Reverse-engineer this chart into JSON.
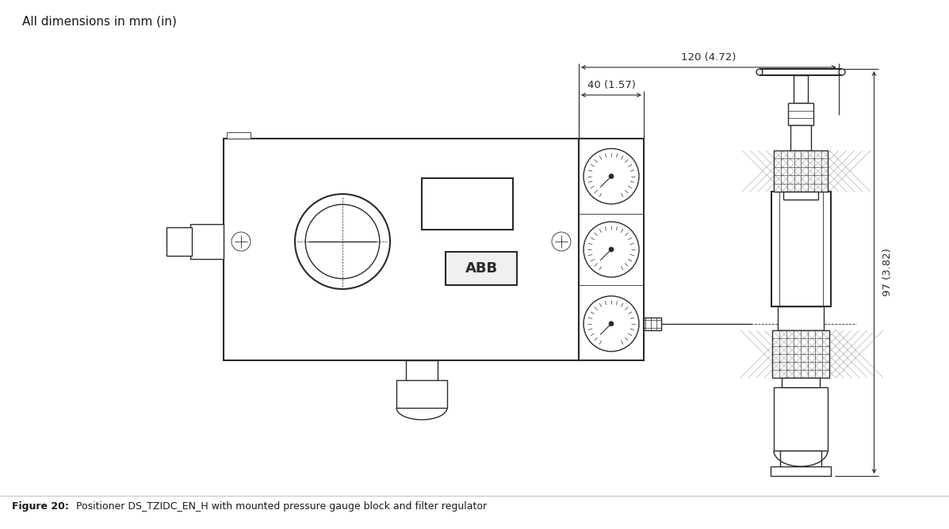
{
  "title_text": "All dimensions in mm (in)",
  "caption_bold": "Figure 20:",
  "caption_rest": "    Positioner DS_TZIDC_EN_H with mounted pressure gauge block and filter regulator",
  "dim1_label": "40 (1.57)",
  "dim2_label": "120 (4.72)",
  "dim3_label": "97 (3.82)",
  "bg_color": "#ffffff",
  "line_color": "#2a2a2a",
  "text_color": "#1a1a1a",
  "title_fontsize": 11,
  "caption_fontsize": 9,
  "dim_fontsize": 9.5
}
